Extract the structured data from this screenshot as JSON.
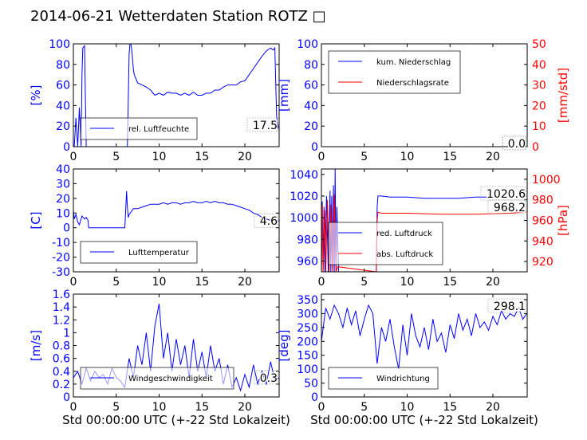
{
  "title": "2014-06-21 Wetterdaten Station ROTZ",
  "title_glyph": "□",
  "xlabel": "Std 00:00:00 UTC (+-22 Std Lokalzeit)",
  "colors": {
    "primary": "#0000ff",
    "secondary": "#ff0000"
  },
  "chart_data": [
    {
      "type": "line",
      "ylabel": "[%]",
      "xlim": [
        0,
        24
      ],
      "ylim": [
        0,
        100
      ],
      "xticks": [
        0,
        5,
        10,
        15,
        20
      ],
      "yticks": [
        0,
        20,
        40,
        60,
        80,
        100
      ],
      "series": [
        {
          "name": "rel. Luftfeuchte",
          "axis": "left",
          "color": "#0000ff",
          "x": [
            0.1,
            0.3,
            0.5,
            0.7,
            0.9,
            1.0,
            1.1,
            1.3,
            1.5,
            1.7,
            1.9,
            2.5,
            3.5,
            4.5,
            5.5,
            6.3,
            6.5,
            6.6,
            6.7,
            6.8,
            6.9,
            7.0,
            7.1,
            7.2,
            7.5,
            8,
            8.5,
            9,
            9.5,
            10,
            10.5,
            11,
            11.5,
            12,
            12.5,
            13,
            13.5,
            14,
            14.5,
            15,
            15.5,
            16,
            16.5,
            17,
            17.5,
            18,
            18.5,
            19,
            19.5,
            20,
            20.5,
            21,
            21.5,
            22,
            22.5,
            23,
            23.3,
            23.5,
            23.7,
            23.9
          ],
          "y": [
            0,
            28,
            0,
            38,
            0,
            70,
            96,
            98,
            0,
            0,
            0,
            0,
            0,
            0,
            0,
            0,
            90,
            100,
            100,
            95,
            85,
            75,
            70,
            68,
            62,
            60,
            58,
            55,
            50,
            52,
            50,
            53,
            52,
            52,
            50,
            52,
            50,
            53,
            50,
            50,
            52,
            52,
            55,
            55,
            58,
            60,
            60,
            60,
            63,
            64,
            70,
            76,
            82,
            88,
            93,
            96,
            94,
            96,
            30,
            17.5
          ]
        }
      ],
      "annotations": [
        {
          "text": "17.5",
          "x": 23.9,
          "y": 17.5
        }
      ]
    },
    {
      "type": "line",
      "ylabel": "[mm]",
      "y2label": "[mm/std]",
      "xlim": [
        0,
        24
      ],
      "ylim": [
        0,
        100
      ],
      "y2lim": [
        0,
        50
      ],
      "xticks": [
        0,
        5,
        10,
        15,
        20
      ],
      "yticks": [
        0,
        20,
        40,
        60,
        80,
        100
      ],
      "y2ticks": [
        0,
        10,
        20,
        30,
        40,
        50
      ],
      "series": [
        {
          "name": "kum. Niederschlag",
          "axis": "left",
          "color": "#0000ff",
          "x": [
            0,
            24
          ],
          "y": [
            0,
            0
          ]
        },
        {
          "name": "Niederschlagsrate",
          "axis": "right",
          "color": "#ff0000",
          "x": [
            0,
            24
          ],
          "y": [
            0,
            0
          ]
        }
      ],
      "annotations": [
        {
          "text": "0.0",
          "x": 23.9,
          "y": 0
        },
        {
          "text": "0.0",
          "x": 23.9,
          "y": 0
        }
      ]
    },
    {
      "type": "line",
      "ylabel": "[C]",
      "xlim": [
        0,
        24
      ],
      "ylim": [
        -30,
        40
      ],
      "xticks": [
        0,
        5,
        10,
        15,
        20
      ],
      "yticks": [
        -30,
        -20,
        -10,
        0,
        10,
        20,
        30,
        40
      ],
      "series": [
        {
          "name": "Lufttemperatur",
          "axis": "left",
          "color": "#0000ff",
          "x": [
            0,
            0.1,
            0.3,
            0.5,
            0.7,
            1.0,
            1.3,
            1.5,
            1.7,
            1.8,
            2.0,
            3,
            4,
            5,
            6.0,
            6.1,
            6.2,
            6.3,
            6.4,
            6.5,
            7,
            7.5,
            8,
            8.5,
            9,
            9.5,
            10,
            10.5,
            11,
            11.5,
            12,
            12.5,
            13,
            13.5,
            14,
            14.5,
            15,
            15.5,
            16,
            16.5,
            17,
            17.5,
            18,
            18.5,
            19,
            19.5,
            20,
            20.5,
            21,
            21.5,
            22,
            22.5,
            23,
            23.5,
            24
          ],
          "y": [
            12,
            6,
            9,
            4,
            2,
            8,
            6,
            7,
            5,
            0,
            0,
            0,
            0,
            0,
            0,
            12,
            25,
            14,
            7,
            9,
            13,
            13,
            14,
            15,
            16,
            16,
            16,
            17,
            16,
            17,
            17,
            16,
            17,
            17,
            18,
            17,
            17,
            18,
            17,
            18,
            17,
            17,
            16,
            16,
            15,
            14,
            13,
            12,
            10,
            9,
            7,
            6,
            5,
            5,
            4.6
          ]
        }
      ],
      "annotations": [
        {
          "text": "4.6",
          "x": 23.9,
          "y": 4.6
        }
      ]
    },
    {
      "type": "line",
      "y2label": "[hPa]",
      "xlim": [
        0,
        24
      ],
      "ylim": [
        950,
        1045
      ],
      "y2lim": [
        910,
        1010
      ],
      "xticks": [
        0,
        5,
        10,
        15,
        20
      ],
      "yticks": [
        960,
        980,
        1000,
        1020,
        1040
      ],
      "y2ticks": [
        920,
        940,
        960,
        980,
        1000
      ],
      "series": [
        {
          "name": "red. Luftdruck",
          "axis": "left",
          "color": "#0000ff",
          "x": [
            0.0,
            0.1,
            0.2,
            0.3,
            0.4,
            0.6,
            0.8,
            1.0,
            1.1,
            1.2,
            1.3,
            1.4,
            1.5,
            1.6,
            1.7,
            1.8,
            2.0,
            6.4,
            6.5,
            6.6,
            7,
            8,
            10,
            12,
            14,
            16,
            18,
            20,
            22,
            23.9
          ],
          "y": [
            950,
            1015,
            950,
            1010,
            950,
            1020,
            950,
            1025,
            950,
            1020,
            950,
            1030,
            950,
            1045,
            950,
            1010,
            950,
            950,
            1010,
            1020,
            1020,
            1019,
            1019,
            1018,
            1018,
            1018,
            1019,
            1019,
            1020,
            1020.6
          ]
        },
        {
          "name": "abs. Luftdruck",
          "axis": "right",
          "color": "#ff0000",
          "x": [
            0.0,
            0.1,
            0.2,
            0.4,
            0.5,
            0.7,
            0.9,
            1.1,
            1.3,
            1.5,
            1.7,
            1.9,
            6.4,
            6.5,
            6.6,
            7,
            10,
            14,
            18,
            22,
            23.9
          ],
          "y": [
            910,
            975,
            910,
            970,
            910,
            980,
            910,
            975,
            910,
            985,
            910,
            915,
            910,
            960,
            968,
            967,
            967,
            966,
            966,
            967,
            968.2
          ]
        }
      ],
      "annotations": [
        {
          "text": "1020.6",
          "x": 23.9,
          "y": 1020.6
        },
        {
          "text": "968.2",
          "x": 23.9,
          "y": 968.2
        }
      ]
    },
    {
      "type": "line",
      "ylabel": "[m/s]",
      "xlim": [
        0,
        24
      ],
      "ylim": [
        0,
        1.6
      ],
      "xticks": [
        0,
        5,
        10,
        15,
        20
      ],
      "yticks": [
        0,
        0.2,
        0.4,
        0.6,
        0.8,
        1.0,
        1.2,
        1.4,
        1.6
      ],
      "series": [
        {
          "name": "Windgeschwindigkeit",
          "axis": "left",
          "color": "#0000ff",
          "x": [
            0,
            0.5,
            1,
            1.5,
            2,
            2.5,
            3,
            3.5,
            4,
            4.5,
            5,
            5.5,
            6,
            6.5,
            7,
            7.5,
            8,
            8.5,
            9,
            9.5,
            10,
            10.5,
            11,
            11.5,
            12,
            12.5,
            13,
            13.5,
            14,
            14.5,
            15,
            15.5,
            16,
            16.5,
            17,
            17.5,
            18,
            18.5,
            19,
            19.5,
            20,
            20.5,
            21,
            21.5,
            22,
            22.5,
            23,
            23.5,
            24
          ],
          "y": [
            0.3,
            0.4,
            0.2,
            0.45,
            0.25,
            0.4,
            0.3,
            0.35,
            0.2,
            0.45,
            0.3,
            0.25,
            0.15,
            0.6,
            0.3,
            0.8,
            0.5,
            1.0,
            0.4,
            1.1,
            1.45,
            0.6,
            1.0,
            0.4,
            0.9,
            0.5,
            0.8,
            0.3,
            0.9,
            0.4,
            0.7,
            0.3,
            0.8,
            0.4,
            0.6,
            0.2,
            0.5,
            0.15,
            0.3,
            0.1,
            0.35,
            0.15,
            0.5,
            0.2,
            0.4,
            0.2,
            0.55,
            0.25,
            0.3
          ]
        }
      ],
      "annotations": [
        {
          "text": "0.3",
          "x": 23.9,
          "y": 0.3
        }
      ]
    },
    {
      "type": "line",
      "ylabel": "[deg]",
      "xlim": [
        0,
        24
      ],
      "ylim": [
        0,
        370
      ],
      "xticks": [
        0,
        5,
        10,
        15,
        20
      ],
      "yticks": [
        0,
        50,
        100,
        150,
        200,
        250,
        300,
        350
      ],
      "series": [
        {
          "name": "Windrichtung",
          "axis": "left",
          "color": "#0000ff",
          "x": [
            0,
            0.5,
            1,
            1.5,
            2,
            2.5,
            3,
            3.5,
            4,
            4.5,
            5,
            5.5,
            6,
            6.5,
            7,
            7.5,
            8,
            8.5,
            9,
            9.5,
            10,
            10.5,
            11,
            11.5,
            12,
            12.5,
            13,
            13.5,
            14,
            14.5,
            15,
            15.5,
            16,
            16.5,
            17,
            17.5,
            18,
            18.5,
            19,
            19.5,
            20,
            20.5,
            21,
            21.5,
            22,
            22.5,
            23,
            23.5,
            23.9
          ],
          "y": [
            200,
            320,
            280,
            330,
            300,
            250,
            320,
            260,
            310,
            220,
            280,
            330,
            300,
            120,
            250,
            200,
            280,
            180,
            100,
            260,
            150,
            300,
            220,
            180,
            250,
            170,
            280,
            200,
            230,
            160,
            260,
            210,
            300,
            240,
            280,
            220,
            300,
            250,
            270,
            240,
            290,
            260,
            310,
            280,
            300,
            290,
            320,
            280,
            298.1
          ]
        }
      ],
      "annotations": [
        {
          "text": "298.1",
          "x": 23.9,
          "y": 298.1
        }
      ]
    }
  ]
}
